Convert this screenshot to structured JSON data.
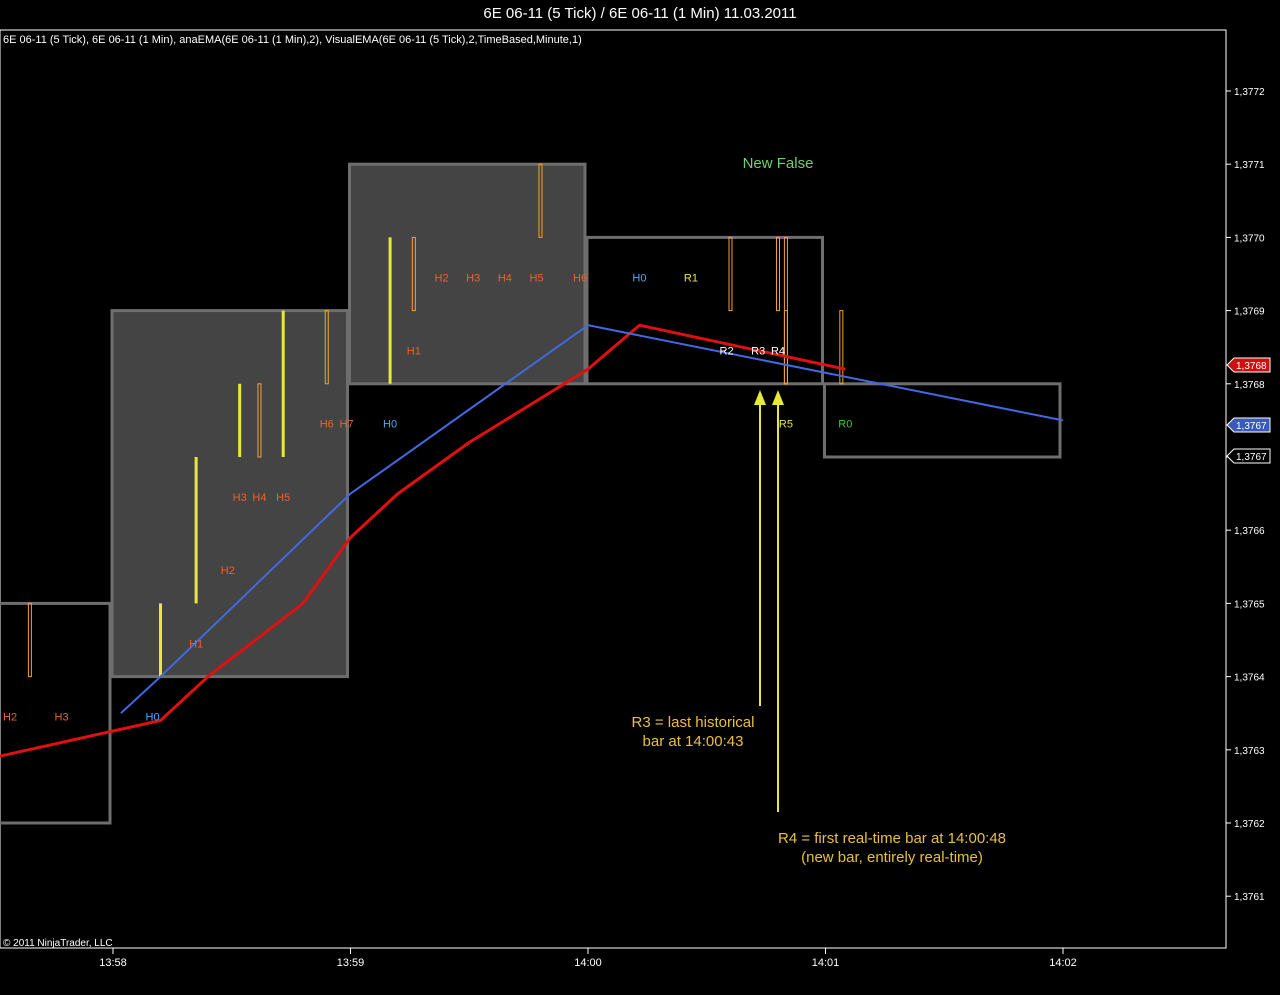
{
  "window_title": "6E 06-11 (5 Tick) / 6E 06-11 (1 Min)  11.03.2011",
  "copyright": "© 2011 NinjaTrader, LLC",
  "colors": {
    "background": "#000000",
    "box_fill": "#444444",
    "box_border": "#6e6e6e",
    "ema_blue": "#4169e1",
    "ema_red": "#e01010",
    "bar_yellow": "#e8e83c",
    "bar_orange": "#f5a030",
    "label_orange": "#f0602a",
    "label_blue": "#4aa8ff",
    "label_green": "#30d030",
    "annotation": "#e8c040",
    "status_green": "#6fd06f"
  },
  "chart_data": {
    "type": "line",
    "title": "",
    "header": "6E 06-11 (5 Tick), 6E 06-11 (1 Min), anaEMA(6E 06-11 (1 Min),2), VisualEMA(6E 06-11 (5 Tick),2,TimeBased,Minute,1)",
    "x_ticks": [
      "13:58",
      "13:59",
      "14:00",
      "14:01",
      "14:02"
    ],
    "y_ticks": [
      "1,3761",
      "1,3762",
      "1,3763",
      "1,3764",
      "1,3765",
      "1,3766",
      "1,3767",
      "1,3768",
      "1,3769",
      "1,3770",
      "1,3771",
      "1,3772"
    ],
    "ylim": [
      1.37605,
      1.37727
    ],
    "grid": false,
    "minute_bars": [
      {
        "start": "13:57:20",
        "end": "13:58",
        "open": 1.3765,
        "close": 1.3762
      },
      {
        "start": "13:58",
        "end": "13:59",
        "open": 1.3764,
        "close": 1.3769
      },
      {
        "start": "13:59",
        "end": "14:00",
        "open": 1.3768,
        "close": 1.3771
      },
      {
        "start": "14:00",
        "end": "14:01",
        "open": 1.377,
        "close": 1.3768
      },
      {
        "start": "14:01",
        "end": "14:02",
        "open": 1.3768,
        "close": 1.3767
      }
    ],
    "series": [
      {
        "name": "anaEMA(6E 06-11 (1 Min),2)",
        "color": "#e01010",
        "points": [
          {
            "t": "13:57:22",
            "v": 1.37628
          },
          {
            "t": "13:58:12",
            "v": 1.37634
          },
          {
            "t": "13:58:24",
            "v": 1.3764
          },
          {
            "t": "13:58:48",
            "v": 1.3765
          },
          {
            "t": "13:59:00",
            "v": 1.37659
          },
          {
            "t": "13:59:12",
            "v": 1.37665
          },
          {
            "t": "13:59:30",
            "v": 1.37672
          },
          {
            "t": "14:00:00",
            "v": 1.37682
          },
          {
            "t": "14:00:13",
            "v": 1.37688
          },
          {
            "t": "14:01:05",
            "v": 1.37682
          }
        ]
      },
      {
        "name": "VisualEMA(6E 06-11 (5 Tick),2,TimeBased,Minute,1)",
        "color": "#4169e1",
        "points": [
          {
            "t": "13:58:02",
            "v": 1.37635
          },
          {
            "t": "13:58:12",
            "v": 1.3764
          },
          {
            "t": "13:59:00",
            "v": 1.37665
          },
          {
            "t": "14:00:00",
            "v": 1.37688
          },
          {
            "t": "14:02:00",
            "v": 1.37675
          }
        ]
      }
    ],
    "tick_bars": [
      {
        "t": "13:57:39",
        "low": 1.3764,
        "high": 1.3765,
        "color": "orange"
      },
      {
        "t": "13:58:12",
        "low": 1.3764,
        "high": 1.3765,
        "color": "yellow"
      },
      {
        "t": "13:58:21",
        "low": 1.3765,
        "high": 1.3767,
        "color": "yellow"
      },
      {
        "t": "13:58:32",
        "low": 1.3767,
        "high": 1.3768,
        "color": "yellow"
      },
      {
        "t": "13:58:37",
        "low": 1.3767,
        "high": 1.3768,
        "color": "orange"
      },
      {
        "t": "13:58:43",
        "low": 1.3767,
        "high": 1.3769,
        "color": "yellow"
      },
      {
        "t": "13:58:54",
        "low": 1.3768,
        "high": 1.3769,
        "color": "orange"
      },
      {
        "t": "13:59:10",
        "low": 1.3768,
        "high": 1.377,
        "color": "yellow"
      },
      {
        "t": "13:59:16",
        "low": 1.3769,
        "high": 1.377,
        "color": "orange"
      },
      {
        "t": "13:59:48",
        "low": 1.377,
        "high": 1.3771,
        "color": "orange"
      },
      {
        "t": "14:00:36",
        "low": 1.3769,
        "high": 1.377,
        "color": "orange"
      },
      {
        "t": "14:00:48",
        "low": 1.3769,
        "high": 1.377,
        "color": "orange"
      },
      {
        "t": "14:00:50",
        "low": 1.3768,
        "high": 1.377,
        "color": "orange"
      },
      {
        "t": "14:00:50",
        "low": 1.3768,
        "high": 1.3769,
        "color": "orange"
      },
      {
        "t": "14:01:04",
        "low": 1.3768,
        "high": 1.3769,
        "color": "orange"
      }
    ],
    "markers": [
      {
        "t": "13:57:34",
        "v": 1.37634,
        "label": "H2",
        "color": "orange"
      },
      {
        "t": "13:57:47",
        "v": 1.37634,
        "label": "H3",
        "color": "orange"
      },
      {
        "t": "13:58:10",
        "v": 1.37634,
        "label": "H0",
        "color": "blue"
      },
      {
        "t": "13:58:21",
        "v": 1.37644,
        "label": "H1",
        "color": "orange"
      },
      {
        "t": "13:58:29",
        "v": 1.37654,
        "label": "H2",
        "color": "orange"
      },
      {
        "t": "13:58:32",
        "v": 1.37664,
        "label": "H3",
        "color": "orange"
      },
      {
        "t": "13:58:37",
        "v": 1.37664,
        "label": "H4",
        "color": "orange"
      },
      {
        "t": "13:58:43",
        "v": 1.37664,
        "label": "H5",
        "color": "orange"
      },
      {
        "t": "13:58:54",
        "v": 1.37674,
        "label": "H6",
        "color": "orange"
      },
      {
        "t": "13:58:59",
        "v": 1.37674,
        "label": "H7",
        "color": "orange"
      },
      {
        "t": "13:59:10",
        "v": 1.37674,
        "label": "H0",
        "color": "blue"
      },
      {
        "t": "13:59:16",
        "v": 1.37684,
        "label": "H1",
        "color": "orange"
      },
      {
        "t": "13:59:23",
        "v": 1.37694,
        "label": "H2",
        "color": "orange"
      },
      {
        "t": "13:59:31",
        "v": 1.37694,
        "label": "H3",
        "color": "orange"
      },
      {
        "t": "13:59:39",
        "v": 1.37694,
        "label": "H4",
        "color": "orange"
      },
      {
        "t": "13:59:47",
        "v": 1.37694,
        "label": "H5",
        "color": "orange"
      },
      {
        "t": "13:59:58",
        "v": 1.37694,
        "label": "H6",
        "color": "orange"
      },
      {
        "t": "14:00:13",
        "v": 1.37694,
        "label": "H0",
        "color": "blue"
      },
      {
        "t": "14:00:26",
        "v": 1.37694,
        "label": "R1",
        "color": "yellow"
      },
      {
        "t": "14:00:35",
        "v": 1.37684,
        "label": "R2",
        "color": "white"
      },
      {
        "t": "14:00:43",
        "v": 1.37684,
        "label": "R3",
        "color": "white"
      },
      {
        "t": "14:00:48",
        "v": 1.37684,
        "label": "R4",
        "color": "white"
      },
      {
        "t": "14:00:50",
        "v": 1.37674,
        "label": "R5",
        "color": "yellow"
      },
      {
        "t": "14:01:05",
        "v": 1.37674,
        "label": "R0",
        "color": "green"
      }
    ],
    "price_tags": [
      {
        "label": "1,3768",
        "bg": "#cc1010",
        "fg": "#ffffff"
      },
      {
        "label": "1,3767",
        "bg": "#3a5ab8",
        "fg": "#ffffff"
      },
      {
        "label": "1,3767",
        "bg": "#000000",
        "fg": "#ffffff"
      }
    ],
    "status_text": "New False",
    "annotations": [
      {
        "lines": [
          "R3 = last historical",
          "bar at 14:00:43"
        ]
      },
      {
        "lines": [
          "R4 = first real-time bar at 14:00:48",
          "(new bar, entirely real-time)"
        ]
      }
    ]
  }
}
